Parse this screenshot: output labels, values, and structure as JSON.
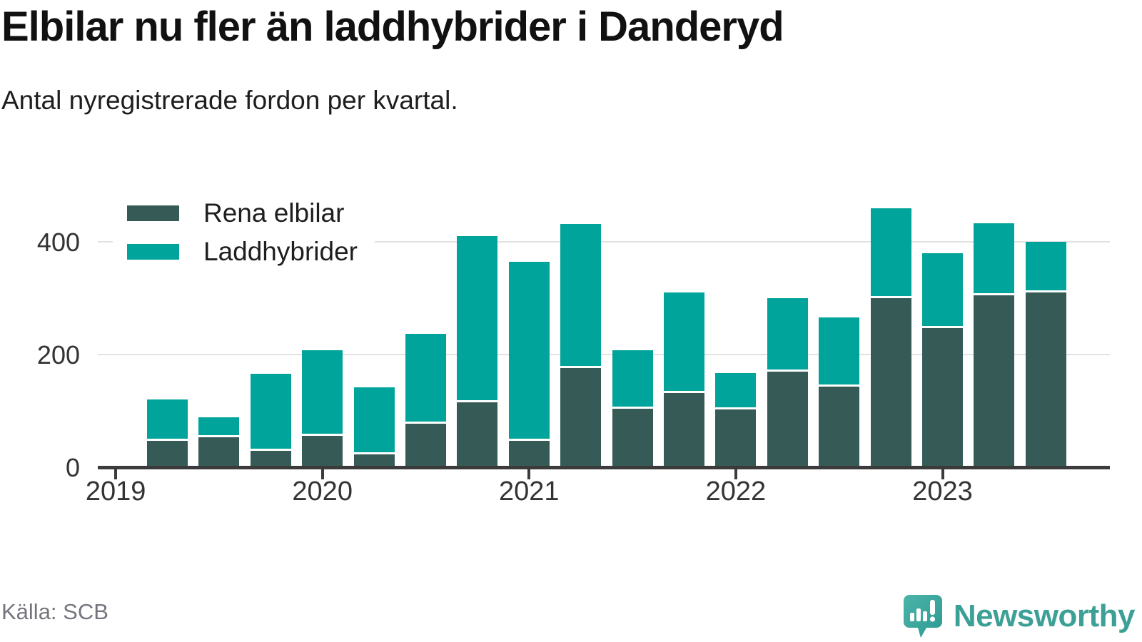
{
  "title": "Elbilar nu fler än laddhybrider i Danderyd",
  "subtitle": "Antal nyregistrerade fordon per kvartal.",
  "source": "Källa: SCB",
  "brand": {
    "name": "Newsworthy",
    "icon": "newsworthy-speech-bubble-chart-icon"
  },
  "colors": {
    "elbilar": "#365b56",
    "laddhybrider": "#00a49b",
    "grid": "#e2e2e2",
    "axis": "#3b3b3b",
    "brand_teal": "#3da096"
  },
  "legend": {
    "items": [
      {
        "label": "Rena elbilar",
        "color": "#365b56"
      },
      {
        "label": "Laddhybrider",
        "color": "#00a49b"
      }
    ]
  },
  "chart_data": {
    "type": "bar",
    "stacked": true,
    "title": "Elbilar nu fler än laddhybrider i Danderyd",
    "subtitle": "Antal nyregistrerade fordon per kvartal.",
    "xlabel": "",
    "ylabel": "Antal nyregistrerade fordon",
    "grid": "horizontal",
    "legend_position": "top-left-inside",
    "ylim": [
      0,
      480
    ],
    "y_ticks": [
      0,
      200,
      400
    ],
    "x_tick_labels": [
      "2019",
      "2020",
      "2021",
      "2022",
      "2023"
    ],
    "categories": [
      "2019 Q2",
      "2019 Q3",
      "2019 Q4",
      "2020 Q1",
      "2020 Q2",
      "2020 Q3",
      "2020 Q4",
      "2021 Q1",
      "2021 Q2",
      "2021 Q3",
      "2021 Q4",
      "2022 Q1",
      "2022 Q2",
      "2022 Q3",
      "2022 Q4",
      "2023 Q1",
      "2023 Q2",
      "2023 Q3"
    ],
    "series": [
      {
        "name": "Rena elbilar",
        "color": "#365b56",
        "values": [
          44,
          51,
          27,
          53,
          20,
          75,
          113,
          45,
          174,
          102,
          130,
          101,
          168,
          142,
          299,
          246,
          305,
          310
        ]
      },
      {
        "name": "Laddhybrider",
        "color": "#00a49b",
        "values": [
          74,
          36,
          138,
          153,
          120,
          160,
          297,
          320,
          257,
          104,
          179,
          65,
          131,
          123,
          160,
          134,
          129,
          91
        ]
      }
    ],
    "totals": [
      118,
      87,
      165,
      206,
      140,
      235,
      410,
      365,
      431,
      206,
      309,
      166,
      299,
      265,
      459,
      380,
      434,
      401
    ]
  }
}
